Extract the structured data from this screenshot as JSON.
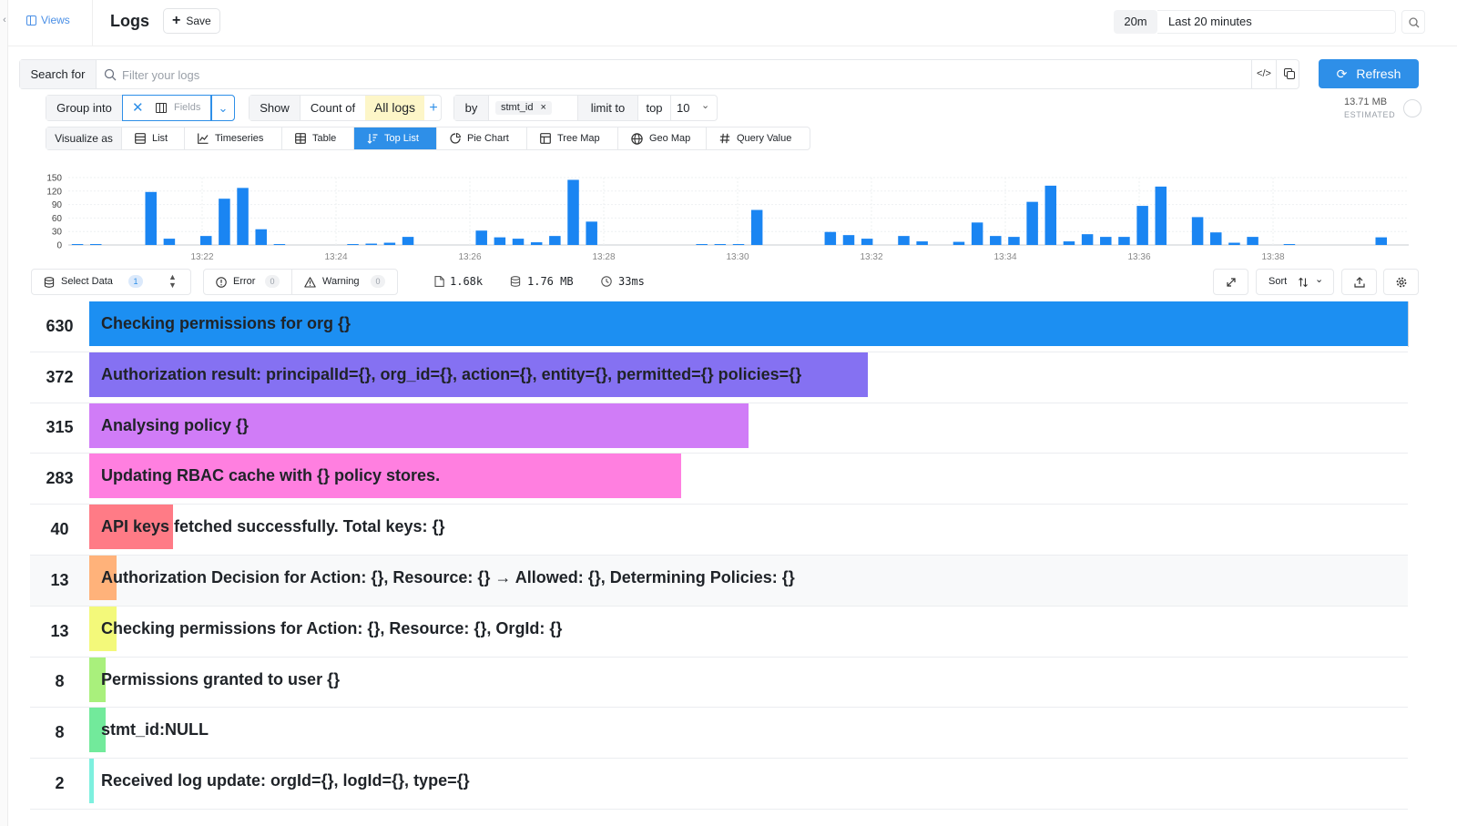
{
  "header": {
    "views_label": "Views",
    "title": "Logs",
    "save_label": "Save",
    "time_chip": "20m",
    "time_range": "Last 20 minutes"
  },
  "search": {
    "label": "Search for",
    "placeholder": "Filter your logs",
    "value": "",
    "refresh_label": "Refresh",
    "estimated_size": "13.71 MB",
    "estimated_label": "ESTIMATED"
  },
  "query": {
    "group_into_label": "Group into",
    "fields_label": "Fields",
    "show_label": "Show",
    "count_of_label": "Count of",
    "all_logs_label": "All logs",
    "by_label": "by",
    "by_field": "stmt_id",
    "limit_to_label": "limit to",
    "top_label": "top",
    "limit_value": "10"
  },
  "visualize": {
    "label": "Visualize as",
    "options": [
      {
        "label": "List",
        "icon": "list-icon"
      },
      {
        "label": "Timeseries",
        "icon": "timeseries-icon"
      },
      {
        "label": "Table",
        "icon": "table-icon"
      },
      {
        "label": "Top List",
        "icon": "top-list-icon"
      },
      {
        "label": "Pie Chart",
        "icon": "pie-chart-icon"
      },
      {
        "label": "Tree Map",
        "icon": "tree-map-icon"
      },
      {
        "label": "Geo Map",
        "icon": "globe-icon"
      },
      {
        "label": "Query Value",
        "icon": "hash-icon"
      }
    ],
    "active": "Top List"
  },
  "chart_data": {
    "type": "bar",
    "title": "",
    "xlabel": "",
    "ylabel": "",
    "ylim": [
      0,
      150
    ],
    "y_ticks": [
      0,
      30,
      60,
      90,
      120,
      150
    ],
    "x_tick_labels": [
      "13:22",
      "13:24",
      "13:26",
      "13:28",
      "13:30",
      "13:32",
      "13:34",
      "13:36",
      "13:38"
    ],
    "bar_color": "#1a85f2",
    "values": [
      2,
      2,
      0,
      0,
      118,
      14,
      0,
      20,
      103,
      127,
      35,
      2,
      0,
      0,
      0,
      2,
      3,
      5,
      18,
      0,
      0,
      0,
      32,
      17,
      14,
      6,
      20,
      145,
      52,
      0,
      0,
      0,
      0,
      0,
      2,
      2,
      2,
      78,
      0,
      0,
      0,
      29,
      22,
      14,
      0,
      20,
      8,
      0,
      7,
      50,
      20,
      18,
      96,
      132,
      8,
      24,
      18,
      18,
      87,
      130,
      0,
      62,
      28,
      5,
      18,
      0,
      2,
      0,
      0,
      0,
      0,
      17,
      0
    ]
  },
  "stats": {
    "select_data_label": "Select Data",
    "select_data_count": "1",
    "error_label": "Error",
    "error_count": "0",
    "warning_label": "Warning",
    "warning_count": "0",
    "log_count": "1.68k",
    "data_size": "1.76 MB",
    "duration": "33ms",
    "sort_label": "Sort"
  },
  "top_list": {
    "max": 630,
    "rows": [
      {
        "count": "630",
        "value": 630,
        "label": "Checking permissions for org {}",
        "color": "#1c8ff2"
      },
      {
        "count": "372",
        "value": 372,
        "label": "Authorization result: principalId={}, org_id={}, action={}, entity={}, permitted={} policies={}",
        "color": "#8571f2"
      },
      {
        "count": "315",
        "value": 315,
        "label": "Analysing policy {}",
        "color": "#d07cf7"
      },
      {
        "count": "283",
        "value": 283,
        "label": "Updating RBAC cache with {} policy stores.",
        "color": "#ff7fe0"
      },
      {
        "count": "40",
        "value": 40,
        "label": "API keys fetched successfully. Total keys: {}",
        "color": "#ff7b86"
      },
      {
        "count": "13",
        "value": 13,
        "label": "Authorization Decision for Action: {}, Resource: {} → Allowed: {}, Determining Policies: {}",
        "color": "#ffb27a"
      },
      {
        "count": "13",
        "value": 13,
        "label": "Checking permissions for Action: {}, Resource: {}, OrgId: {}",
        "color": "#f3f97a"
      },
      {
        "count": "8",
        "value": 8,
        "label": "Permissions granted to user {}",
        "color": "#a9f07c"
      },
      {
        "count": "8",
        "value": 8,
        "label": "stmt_id:NULL",
        "color": "#72ea9b"
      },
      {
        "count": "2",
        "value": 2,
        "label": "Received log update: orgId={}, logId={}, type={}",
        "color": "#7ef0df"
      }
    ]
  }
}
